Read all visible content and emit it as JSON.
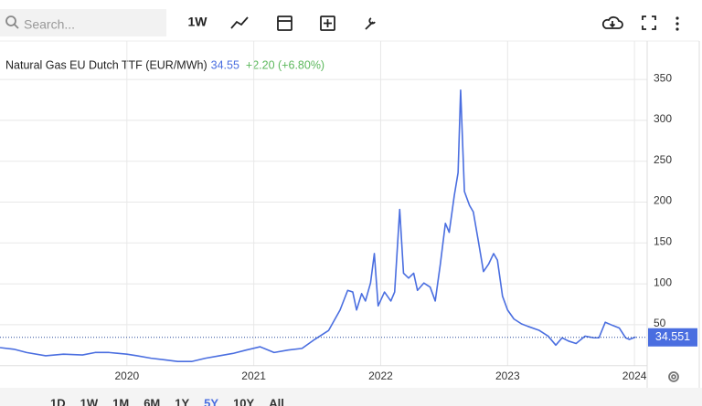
{
  "toolbar": {
    "search_placeholder": "Search...",
    "interval": "1W"
  },
  "chart_data": {
    "type": "line",
    "title": "Natural Gas EU Dutch TTF (EUR/MWh)",
    "price": "34.55",
    "change": "+2.20 (+6.80%)",
    "x": [
      2019.0,
      2019.11,
      2019.21,
      2019.36,
      2019.5,
      2019.65,
      2019.75,
      2019.86,
      2020.0,
      2020.08,
      2020.19,
      2020.3,
      2020.4,
      2020.51,
      2020.62,
      2020.73,
      2020.84,
      2020.94,
      2021.05,
      2021.16,
      2021.27,
      2021.38,
      2021.48,
      2021.59,
      2021.68,
      2021.74,
      2021.78,
      2021.81,
      2021.85,
      2021.88,
      2021.92,
      2021.95,
      2021.98,
      2022.03,
      2022.08,
      2022.11,
      2022.15,
      2022.18,
      2022.22,
      2022.26,
      2022.29,
      2022.34,
      2022.39,
      2022.43,
      2022.47,
      2022.51,
      2022.54,
      2022.58,
      2022.61,
      2022.63,
      2022.66,
      2022.7,
      2022.73,
      2022.77,
      2022.81,
      2022.85,
      2022.89,
      2022.92,
      2022.96,
      2023.0,
      2023.05,
      2023.11,
      2023.16,
      2023.25,
      2023.32,
      2023.38,
      2023.43,
      2023.48,
      2023.54,
      2023.61,
      2023.68,
      2023.72,
      2023.77,
      2023.83,
      2023.88,
      2023.93,
      2023.96,
      2024.01
    ],
    "series": [
      {
        "name": "Natural Gas EU Dutch TTF",
        "color": "#4a6ee0",
        "values": [
          22,
          20,
          16,
          12,
          14,
          13,
          16,
          16,
          14,
          12,
          9,
          7,
          5,
          5,
          9,
          12,
          15,
          19,
          23,
          16,
          19,
          21,
          32,
          43,
          68,
          92,
          90,
          68,
          88,
          79,
          101,
          137,
          73,
          90,
          79,
          90,
          191,
          113,
          107,
          113,
          92,
          101,
          96,
          79,
          124,
          174,
          163,
          208,
          236,
          337,
          213,
          196,
          188,
          152,
          115,
          124,
          137,
          129,
          85,
          68,
          57,
          51,
          48,
          43,
          36,
          25,
          34,
          30,
          27,
          36,
          34,
          34,
          53,
          49,
          46,
          34,
          32,
          35
        ]
      }
    ],
    "last_value": 34.551,
    "xlim": [
      2019.0,
      2024.1
    ],
    "xticks": [
      2020,
      2021,
      2022,
      2023,
      2024
    ],
    "ylim": [
      0,
      397
    ],
    "yticks": [
      50,
      100,
      150,
      200,
      250,
      300,
      350
    ],
    "grid": true
  },
  "range_buttons": [
    "1D",
    "1W",
    "1M",
    "6M",
    "1Y",
    "5Y",
    "10Y",
    "All"
  ]
}
